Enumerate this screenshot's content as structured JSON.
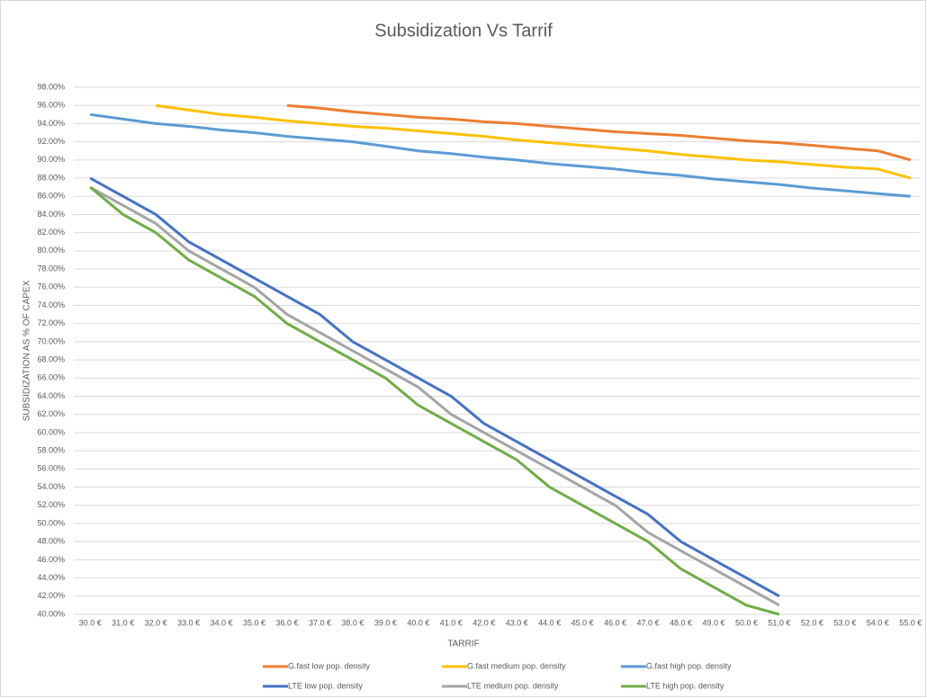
{
  "chart_data": {
    "type": "line",
    "title": "Subsidization Vs Tarrif",
    "xlabel": "TARRIF",
    "ylabel": "SUBSIDIZATION AS % OF CAPEX",
    "categories": [
      "30.0 €",
      "31.0 €",
      "32.0 €",
      "33.0 €",
      "34.0 €",
      "35.0 €",
      "36.0 €",
      "37.0 €",
      "38.0 €",
      "39.0 €",
      "40.0 €",
      "41.0 €",
      "42.0 €",
      "43.0 €",
      "44.0 €",
      "45.0 €",
      "46.0 €",
      "47.0 €",
      "48.0 €",
      "49.0 €",
      "50.0 €",
      "51.0 €",
      "52.0 €",
      "53.0 €",
      "54.0 €",
      "55.0 €"
    ],
    "series": [
      {
        "name": "G.fast low pop. density",
        "color": "#ed7d31",
        "values": [
          null,
          null,
          null,
          null,
          null,
          null,
          96,
          95.7,
          95.3,
          95,
          94.7,
          94.5,
          94.2,
          94,
          93.7,
          93.4,
          93.1,
          92.9,
          92.7,
          92.4,
          92.1,
          91.9,
          91.6,
          91.3,
          91,
          90
        ]
      },
      {
        "name": "G.fast medium pop. density",
        "color": "#ffc000",
        "values": [
          null,
          null,
          96,
          95.5,
          95,
          94.7,
          94.3,
          94,
          93.7,
          93.5,
          93.2,
          92.9,
          92.6,
          92.2,
          91.9,
          91.6,
          91.3,
          91,
          90.6,
          90.3,
          90,
          89.8,
          89.5,
          89.2,
          89,
          88
        ]
      },
      {
        "name": "G.fast high pop. density",
        "color": "#5b9bd5",
        "values": [
          95,
          94.5,
          94,
          93.7,
          93.3,
          93,
          92.6,
          92.3,
          92,
          91.5,
          91,
          90.7,
          90.3,
          90,
          89.6,
          89.3,
          89,
          88.6,
          88.3,
          87.9,
          87.6,
          87.3,
          86.9,
          86.6,
          86.3,
          86
        ]
      },
      {
        "name": "LTE low pop. density",
        "color": "#4472c4",
        "values": [
          88,
          86,
          84,
          81,
          79,
          77,
          75,
          73,
          70,
          68,
          66,
          64,
          61,
          59,
          57,
          55,
          53,
          51,
          48,
          46,
          44,
          42,
          null,
          null,
          null,
          null
        ]
      },
      {
        "name": "LTE medium pop. density",
        "color": "#a5a5a5",
        "values": [
          87,
          85,
          83,
          80,
          78,
          76,
          73,
          71,
          69,
          67,
          65,
          62,
          60,
          58,
          56,
          54,
          52,
          49,
          47,
          45,
          43,
          41,
          null,
          null,
          null,
          null
        ]
      },
      {
        "name": "LTE high pop. density",
        "color": "#70ad47",
        "values": [
          87,
          84,
          82,
          79,
          77,
          75,
          72,
          70,
          68,
          66,
          63,
          61,
          59,
          57,
          54,
          52,
          50,
          48,
          45,
          43,
          41,
          40,
          null,
          null,
          null,
          null
        ]
      }
    ],
    "ylim": [
      40,
      98
    ],
    "yticks": [
      {
        "value": 40,
        "label": "40.00%"
      },
      {
        "value": 42,
        "label": "42.00%"
      },
      {
        "value": 44,
        "label": "44.00%"
      },
      {
        "value": 46,
        "label": "46.00%"
      },
      {
        "value": 48,
        "label": "48.00%"
      },
      {
        "value": 50,
        "label": "50.00%"
      },
      {
        "value": 52,
        "label": "52.00%"
      },
      {
        "value": 54,
        "label": "54.00%"
      },
      {
        "value": 56,
        "label": "56.00%"
      },
      {
        "value": 58,
        "label": "58.00%"
      },
      {
        "value": 60,
        "label": "60.00%"
      },
      {
        "value": 62,
        "label": "62.00%"
      },
      {
        "value": 64,
        "label": "64.00%"
      },
      {
        "value": 66,
        "label": "66.00%"
      },
      {
        "value": 68,
        "label": "68.00%"
      },
      {
        "value": 70,
        "label": "70.00%"
      },
      {
        "value": 72,
        "label": "72.00%"
      },
      {
        "value": 74,
        "label": "74.00%"
      },
      {
        "value": 76,
        "label": "76.00%"
      },
      {
        "value": 78,
        "label": "78.00%"
      },
      {
        "value": 80,
        "label": "80.00%"
      },
      {
        "value": 82,
        "label": "82.00%"
      },
      {
        "value": 84,
        "label": "84.00%"
      },
      {
        "value": 86,
        "label": "86.00%"
      },
      {
        "value": 88,
        "label": "88.00%"
      },
      {
        "value": 90,
        "label": "90.00%"
      },
      {
        "value": 92,
        "label": "92.00%"
      },
      {
        "value": 94,
        "label": "94.00%"
      },
      {
        "value": 96,
        "label": "96.00%"
      },
      {
        "value": 98,
        "label": "98.00%"
      }
    ],
    "grid": true
  }
}
